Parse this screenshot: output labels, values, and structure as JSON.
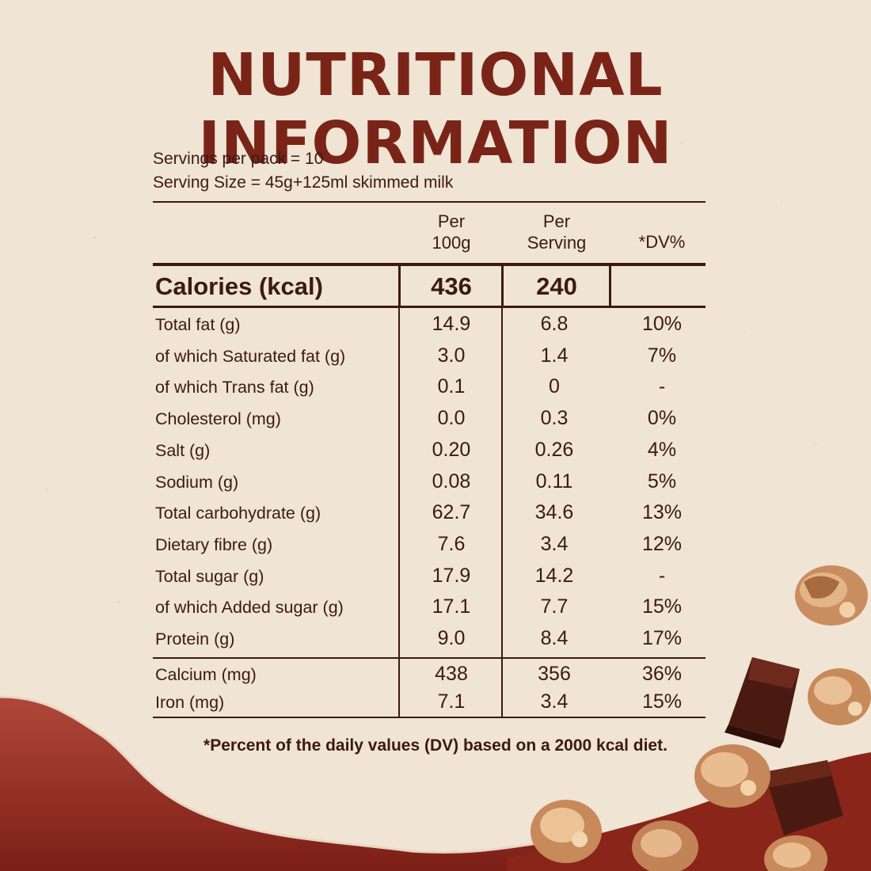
{
  "title": "NUTRITIONAL INFORMATION",
  "servings_per_pack": "Servings per pack = 10",
  "serving_size": "Serving Size = 45g+125ml skimmed milk",
  "columns": {
    "per100_line1": "Per",
    "per100_line2": "100g",
    "perserv_line1": "Per",
    "perserv_line2": "Serving",
    "dv": "*DV%"
  },
  "calories": {
    "label": "Calories (kcal)",
    "per100": "436",
    "perserving": "240",
    "dv": ""
  },
  "rows": [
    {
      "label": "Total fat (g)",
      "per100": "14.9",
      "perserving": "6.8",
      "dv": "10%"
    },
    {
      "label": "of which Saturated fat (g)",
      "per100": "3.0",
      "perserving": "1.4",
      "dv": "7%"
    },
    {
      "label": "of which Trans fat (g)",
      "per100": "0.1",
      "perserving": "0",
      "dv": "-"
    },
    {
      "label": "Cholesterol (mg)",
      "per100": "0.0",
      "perserving": "0.3",
      "dv": "0%"
    },
    {
      "label": "Salt (g)",
      "per100": "0.20",
      "perserving": "0.26",
      "dv": "4%"
    },
    {
      "label": "Sodium (g)",
      "per100": "0.08",
      "perserving": "0.11",
      "dv": "5%"
    },
    {
      "label": "Total carbohydrate (g)",
      "per100": "62.7",
      "perserving": "34.6",
      "dv": "13%"
    },
    {
      "label": "Dietary fibre (g)",
      "per100": "7.6",
      "perserving": "3.4",
      "dv": "12%"
    },
    {
      "label": "Total sugar (g)",
      "per100": "17.9",
      "perserving": "14.2",
      "dv": "-"
    },
    {
      "label": "of which Added sugar (g)",
      "per100": "17.1",
      "perserving": "7.7",
      "dv": "15%"
    },
    {
      "label": "Protein (g)",
      "per100": "9.0",
      "perserving": "8.4",
      "dv": "17%"
    }
  ],
  "minerals": [
    {
      "label": "Calcium (mg)",
      "per100": "438",
      "perserving": "356",
      "dv": "36%"
    },
    {
      "label": "Iron (mg)",
      "per100": "7.1",
      "perserving": "3.4",
      "dv": "15%"
    }
  ],
  "footnote": "*Percent of the daily values (DV) based on a 2000 kcal diet.",
  "colors": {
    "title": "#7a2418",
    "text": "#3b1a12",
    "paper": "#f0e4d4",
    "chocolate": "#4a1a12",
    "maroon": "#8e2a1f"
  },
  "decorations": [
    "granola-cluster-icon",
    "chocolate-chunk-icon"
  ]
}
